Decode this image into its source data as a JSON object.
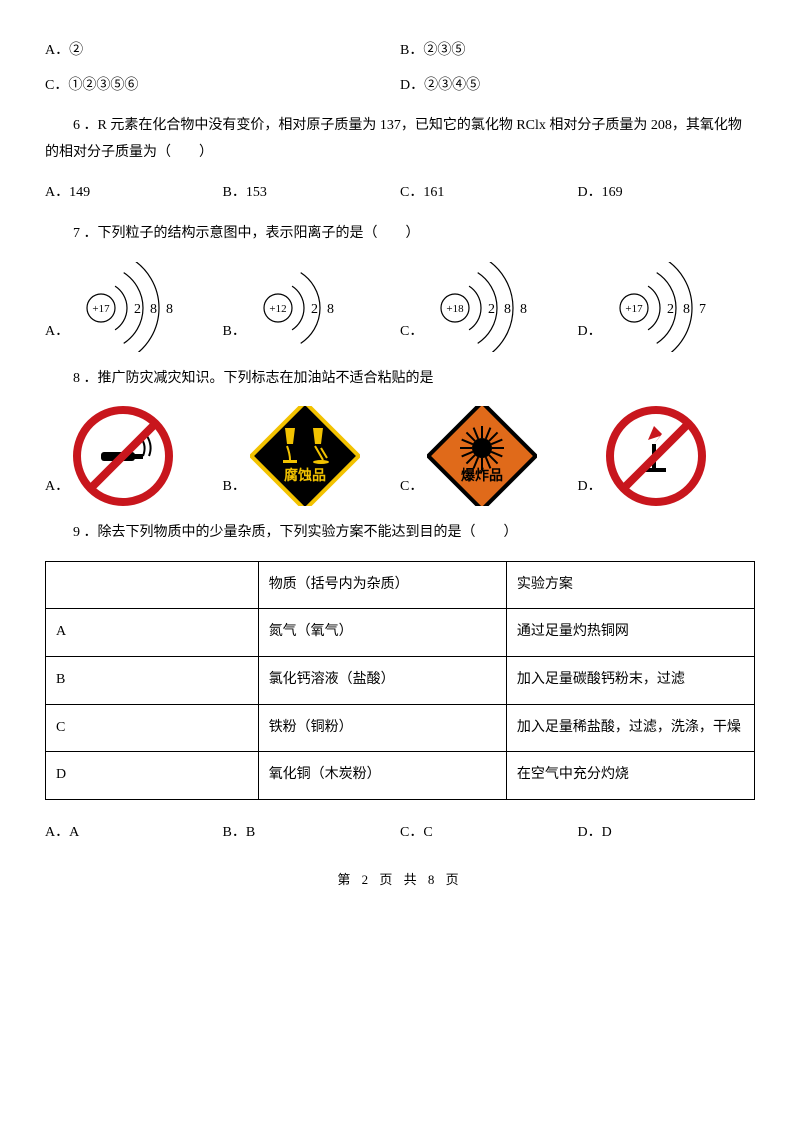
{
  "q5": {
    "opts": {
      "A": "A．②",
      "B": "B．②③⑤",
      "C": "C．①②③⑤⑥",
      "D": "D．②③④⑤"
    }
  },
  "q6": {
    "text": "6 ．R 元素在化合物中没有变价，相对原子质量为 137，已知它的氯化物 RClx 相对分子质量为 208，其氧化物的相对分子质量为（　　）",
    "opts": {
      "A": "A．149",
      "B": "B．153",
      "C": "C．161",
      "D": "D．169"
    }
  },
  "q7": {
    "text": "7 ．下列粒子的结构示意图中，表示阳离子的是（　　）",
    "atoms": [
      {
        "nucleus": "+17",
        "shells": [
          "2",
          "8",
          "8"
        ]
      },
      {
        "nucleus": "+12",
        "shells": [
          "2",
          "8"
        ]
      },
      {
        "nucleus": "+18",
        "shells": [
          "2",
          "8",
          "8"
        ]
      },
      {
        "nucleus": "+17",
        "shells": [
          "2",
          "8",
          "7"
        ]
      }
    ]
  },
  "q8": {
    "text": "8 ．推广防灾减灾知识。下列标志在加油站不适合粘贴的是",
    "signs": {
      "B": "腐蚀品",
      "C": "爆炸品"
    }
  },
  "q9": {
    "text": "9 ．除去下列物质中的少量杂质，下列实验方案不能达到目的是（　　）",
    "header": {
      "c2": "物质（括号内为杂质）",
      "c3": "实验方案"
    },
    "rows": [
      {
        "c1": "A",
        "c2": "氮气（氧气）",
        "c3": " 通过足量灼热铜网"
      },
      {
        "c1": "B",
        "c2": "氯化钙溶液（盐酸）",
        "c3": "加入足量碳酸钙粉末，过滤"
      },
      {
        "c1": "C",
        "c2": "铁粉（铜粉）",
        "c3": " 加入足量稀盐酸，过滤，洗涤，干燥"
      },
      {
        "c1": "D",
        "c2": "氧化铜（木炭粉）",
        "c3": " 在空气中充分灼烧"
      }
    ],
    "opts": {
      "A": "A．A",
      "B": "B．B",
      "C": "C．C",
      "D": "D．D"
    }
  },
  "labels": {
    "A": "A．",
    "B": "B．",
    "C": "C．",
    "D": "D．"
  },
  "footer": "第 2 页 共 8 页",
  "colors": {
    "red": "#c8161d",
    "yellow": "#f2c200",
    "orange": "#e06a1a",
    "black": "#000000",
    "white": "#ffffff"
  }
}
